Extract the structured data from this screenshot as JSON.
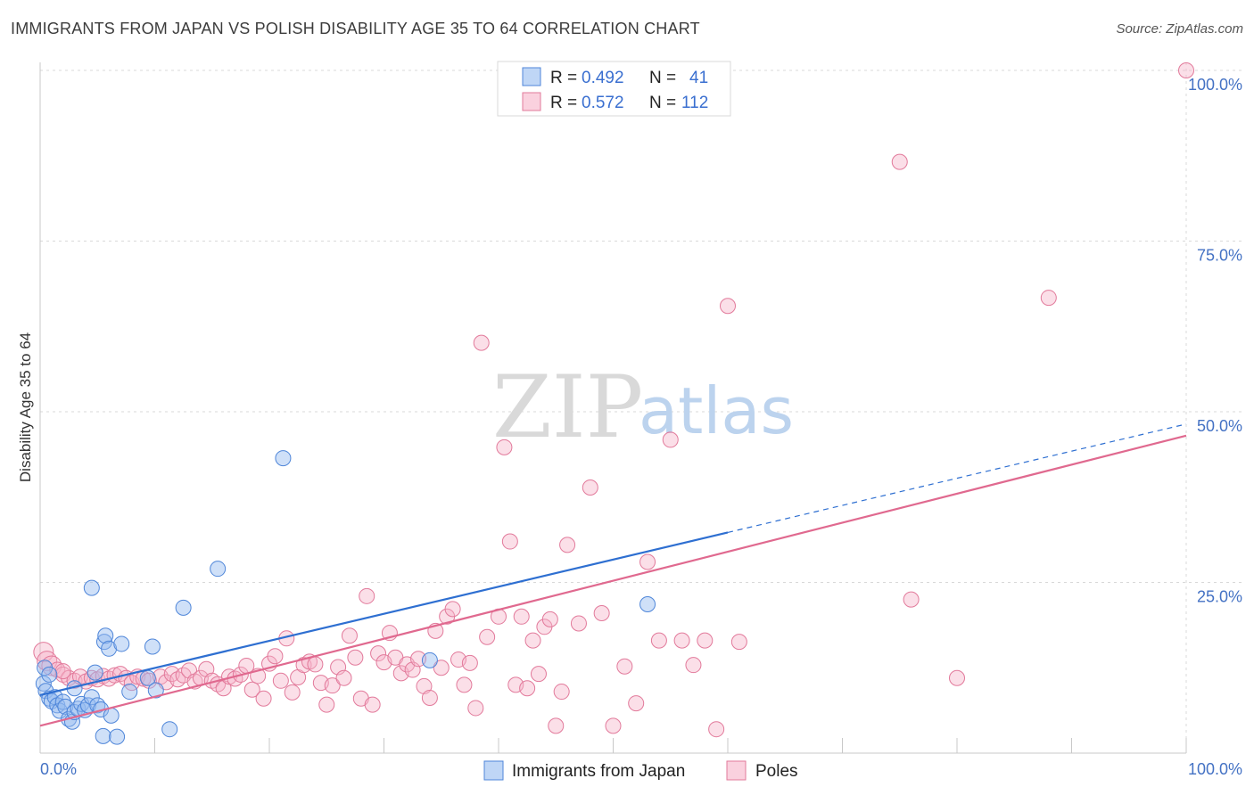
{
  "header": {
    "title": "IMMIGRANTS FROM JAPAN VS POLISH DISABILITY AGE 35 TO 64 CORRELATION CHART",
    "source": "Source: ZipAtlas.com"
  },
  "watermark": {
    "zip": "ZIP",
    "atlas": "atlas"
  },
  "colors": {
    "blue": "#4f86d9",
    "blue_fill": "rgba(148,186,240,0.45)",
    "blue_line": "#2e6fd1",
    "pink": "#e27a9b",
    "pink_fill": "rgba(246,178,200,0.42)",
    "pink_line": "#e0698f",
    "grid": "#d9d9d9",
    "tick_text": "#4472c4"
  },
  "legend": {
    "rows": [
      {
        "r_label": "R =",
        "r_value": "0.492",
        "n_label": "N =",
        "n_value": "41"
      },
      {
        "r_label": "R =",
        "r_value": "0.572",
        "n_label": "N =",
        "n_value": "112"
      }
    ]
  },
  "chart_data": {
    "type": "scatter",
    "title": "IMMIGRANTS FROM JAPAN VS POLISH DISABILITY AGE 35 TO 64 CORRELATION CHART",
    "xlabel": "",
    "ylabel": "Disability Age 35 to 64",
    "xlim": [
      0,
      100
    ],
    "ylim": [
      0,
      100
    ],
    "x_tick_labels": [
      "0.0%",
      "100.0%"
    ],
    "y_ticks": [
      25,
      50,
      75,
      100
    ],
    "y_tick_labels": [
      "25.0%",
      "50.0%",
      "75.0%",
      "100.0%"
    ],
    "grid": true,
    "legend_position": "top-center",
    "series": [
      {
        "name": "Immigrants from Japan",
        "r": 0.492,
        "n": 41,
        "trend": {
          "x0": 0,
          "y0": 8.5,
          "x_solid_end": 60,
          "x1": 100,
          "y1": 48.2
        },
        "points": [
          [
            0.4,
            12.5
          ],
          [
            0.3,
            10.2
          ],
          [
            0.5,
            9.1
          ],
          [
            0.8,
            8.0
          ],
          [
            1.0,
            7.6
          ],
          [
            1.3,
            8.2
          ],
          [
            1.5,
            7.0
          ],
          [
            1.7,
            6.2
          ],
          [
            2.0,
            7.5
          ],
          [
            2.2,
            6.8
          ],
          [
            2.5,
            5.0
          ],
          [
            2.8,
            4.6
          ],
          [
            3.0,
            6.0
          ],
          [
            3.3,
            6.5
          ],
          [
            3.6,
            7.2
          ],
          [
            3.9,
            6.3
          ],
          [
            4.2,
            7.0
          ],
          [
            4.5,
            8.2
          ],
          [
            4.8,
            11.8
          ],
          [
            5.0,
            7.0
          ],
          [
            5.3,
            6.4
          ],
          [
            4.5,
            24.2
          ],
          [
            5.6,
            16.3
          ],
          [
            5.7,
            17.2
          ],
          [
            6.0,
            15.3
          ],
          [
            6.2,
            5.5
          ],
          [
            7.1,
            16.0
          ],
          [
            7.8,
            9.0
          ],
          [
            9.4,
            11.0
          ],
          [
            10.1,
            9.2
          ],
          [
            9.8,
            15.6
          ],
          [
            12.5,
            21.3
          ],
          [
            15.5,
            27.0
          ],
          [
            21.2,
            43.2
          ],
          [
            34.0,
            13.6
          ],
          [
            53.0,
            21.8
          ],
          [
            5.5,
            2.5
          ],
          [
            6.7,
            2.4
          ],
          [
            11.3,
            3.5
          ],
          [
            0.8,
            11.5
          ],
          [
            3.0,
            9.5
          ]
        ]
      },
      {
        "name": "Poles",
        "r": 0.572,
        "n": 112,
        "trend": {
          "x0": 0,
          "y0": 4.0,
          "x_solid_end": 100,
          "x1": 100,
          "y1": 46.5
        },
        "points": [
          [
            0.3,
            14.8
          ],
          [
            0.6,
            13.5
          ],
          [
            1.0,
            12.8
          ],
          [
            1.5,
            12.2
          ],
          [
            2.0,
            11.5
          ],
          [
            2.5,
            11.0
          ],
          [
            3.0,
            10.6
          ],
          [
            3.5,
            11.2
          ],
          [
            4.0,
            10.5
          ],
          [
            4.5,
            11.0
          ],
          [
            5.0,
            10.8
          ],
          [
            5.5,
            11.3
          ],
          [
            6.0,
            10.9
          ],
          [
            6.5,
            11.4
          ],
          [
            7.0,
            11.6
          ],
          [
            7.5,
            11.0
          ],
          [
            8.0,
            10.3
          ],
          [
            8.5,
            11.2
          ],
          [
            9.0,
            10.9
          ],
          [
            9.5,
            10.6
          ],
          [
            10.5,
            11.2
          ],
          [
            11.0,
            10.4
          ],
          [
            11.5,
            11.6
          ],
          [
            12.0,
            10.8
          ],
          [
            12.5,
            11.4
          ],
          [
            13.0,
            12.1
          ],
          [
            13.5,
            10.5
          ],
          [
            14.0,
            11.0
          ],
          [
            14.5,
            12.3
          ],
          [
            15.0,
            10.6
          ],
          [
            15.5,
            10.1
          ],
          [
            16.0,
            9.5
          ],
          [
            16.5,
            11.2
          ],
          [
            17.0,
            10.9
          ],
          [
            17.5,
            11.5
          ],
          [
            18.0,
            12.8
          ],
          [
            18.5,
            9.3
          ],
          [
            19.0,
            11.3
          ],
          [
            19.5,
            8.0
          ],
          [
            20.0,
            13.1
          ],
          [
            20.5,
            14.2
          ],
          [
            21.0,
            10.6
          ],
          [
            21.5,
            16.8
          ],
          [
            22.0,
            8.9
          ],
          [
            22.5,
            11.1
          ],
          [
            23.0,
            12.9
          ],
          [
            23.5,
            13.4
          ],
          [
            24.0,
            13.0
          ],
          [
            24.5,
            10.3
          ],
          [
            25.0,
            7.1
          ],
          [
            25.5,
            9.9
          ],
          [
            26.0,
            12.6
          ],
          [
            26.5,
            11.0
          ],
          [
            27.0,
            17.2
          ],
          [
            27.5,
            14.0
          ],
          [
            28.0,
            8.0
          ],
          [
            28.5,
            23.0
          ],
          [
            29.0,
            7.1
          ],
          [
            29.5,
            14.6
          ],
          [
            30.0,
            13.3
          ],
          [
            30.5,
            17.6
          ],
          [
            31.0,
            14.0
          ],
          [
            31.5,
            11.7
          ],
          [
            32.0,
            13.0
          ],
          [
            32.5,
            12.2
          ],
          [
            33.0,
            13.8
          ],
          [
            33.5,
            9.8
          ],
          [
            34.0,
            8.1
          ],
          [
            34.5,
            17.9
          ],
          [
            35.0,
            12.5
          ],
          [
            35.5,
            20.0
          ],
          [
            36.0,
            21.1
          ],
          [
            36.5,
            13.7
          ],
          [
            37.0,
            10.0
          ],
          [
            37.5,
            13.2
          ],
          [
            38.0,
            6.6
          ],
          [
            38.5,
            60.1
          ],
          [
            39.0,
            17.0
          ],
          [
            40.0,
            20.0
          ],
          [
            40.5,
            44.8
          ],
          [
            41.0,
            31.0
          ],
          [
            41.5,
            10.0
          ],
          [
            42.0,
            20.0
          ],
          [
            42.5,
            9.5
          ],
          [
            43.0,
            16.5
          ],
          [
            43.5,
            11.6
          ],
          [
            44.0,
            18.5
          ],
          [
            44.5,
            19.6
          ],
          [
            45.0,
            4.0
          ],
          [
            45.5,
            9.0
          ],
          [
            46.0,
            30.5
          ],
          [
            47.0,
            19.0
          ],
          [
            48.0,
            38.9
          ],
          [
            49.0,
            20.5
          ],
          [
            50.0,
            4.0
          ],
          [
            51.0,
            12.7
          ],
          [
            52.0,
            7.3
          ],
          [
            53.0,
            28.0
          ],
          [
            54.0,
            16.5
          ],
          [
            55.0,
            45.9
          ],
          [
            56.0,
            16.5
          ],
          [
            57.0,
            12.9
          ],
          [
            58.0,
            16.5
          ],
          [
            59.0,
            3.5
          ],
          [
            60.0,
            65.5
          ],
          [
            61.0,
            16.3
          ],
          [
            75.0,
            86.6
          ],
          [
            76.0,
            22.5
          ],
          [
            80.0,
            11.0
          ],
          [
            88.0,
            66.7
          ],
          [
            100.0,
            100.0
          ],
          [
            2.0,
            12.0
          ]
        ]
      }
    ]
  },
  "bottom_legend": {
    "items": [
      {
        "label": "Immigrants from Japan"
      },
      {
        "label": "Poles"
      }
    ]
  }
}
